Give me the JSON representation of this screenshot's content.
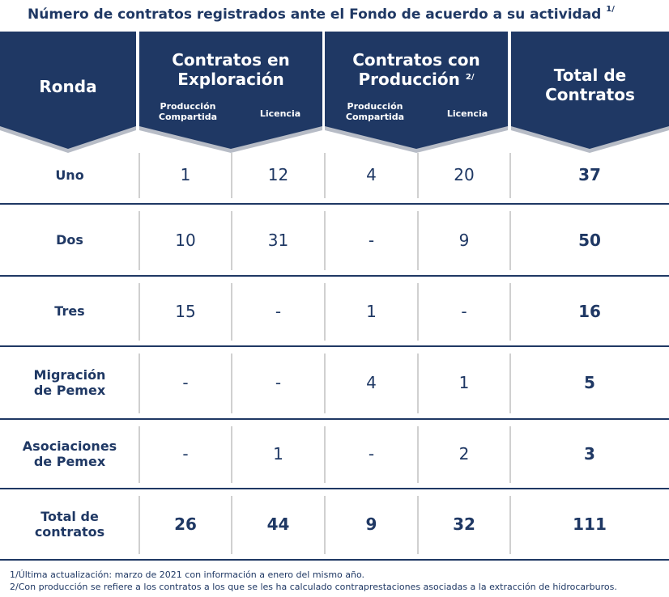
{
  "title": "Número de contratos registrados ante el Fondo de acuerdo a su actividad",
  "title_sup": "1/",
  "header": {
    "ronda": "Ronda",
    "exploracion_line1": "Contratos en",
    "exploracion_line2": "Exploración",
    "produccion_line1": "Contratos con",
    "produccion_line2": "Producción",
    "produccion_sup": "2/",
    "total_line1": "Total de",
    "total_line2": "Contratos",
    "sub_pc_line1": "Producción",
    "sub_pc_line2": "Compartida",
    "sub_lic": "Licencia"
  },
  "rows": [
    {
      "label1": "Uno",
      "label2": "",
      "exp_pc": "1",
      "exp_lic": "12",
      "prod_pc": "4",
      "prod_lic": "20",
      "total": "37"
    },
    {
      "label1": "Dos",
      "label2": "",
      "exp_pc": "10",
      "exp_lic": "31",
      "prod_pc": "-",
      "prod_lic": "9",
      "total": "50"
    },
    {
      "label1": "Tres",
      "label2": "",
      "exp_pc": "15",
      "exp_lic": "-",
      "prod_pc": "1",
      "prod_lic": "-",
      "total": "16"
    },
    {
      "label1": "Migración",
      "label2": "de Pemex",
      "exp_pc": "-",
      "exp_lic": "-",
      "prod_pc": "4",
      "prod_lic": "1",
      "total": "5"
    },
    {
      "label1": "Asociaciones",
      "label2": "de Pemex",
      "exp_pc": "-",
      "exp_lic": "1",
      "prod_pc": "-",
      "prod_lic": "2",
      "total": "3"
    }
  ],
  "totals": {
    "label1": "Total de",
    "label2": "contratos",
    "exp_pc": "26",
    "exp_lic": "44",
    "prod_pc": "9",
    "prod_lic": "32",
    "total": "111"
  },
  "notes": [
    "1/Última actualización: marzo de 2021 con información a enero del mismo año.",
    "2/Con producción se refiere a los contratos a los que se les ha calculado contraprestaciones asociadas a la extracción de hidrocarburos."
  ],
  "colors": {
    "header_bg": "#1f3864",
    "header_shadow": "#b7bcc6",
    "text": "#1f3864",
    "grid": "#d0d0d0"
  }
}
